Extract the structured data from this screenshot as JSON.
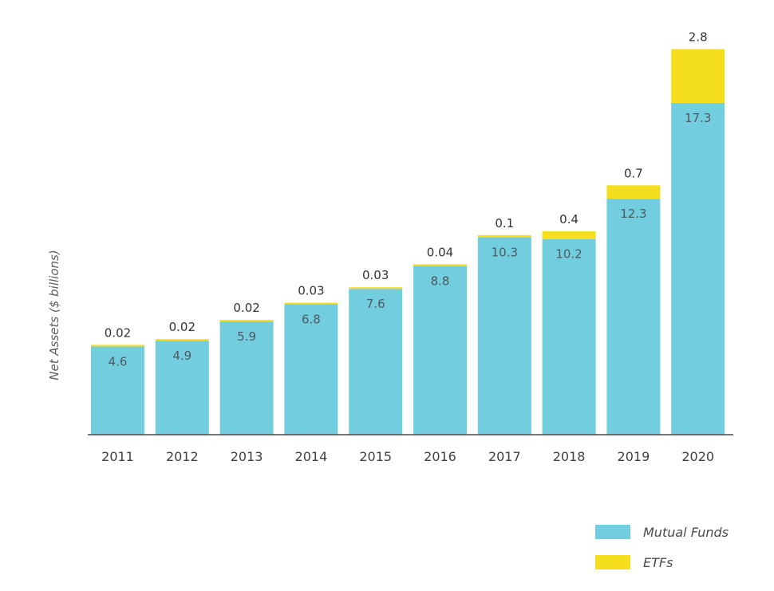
{
  "chart_data": {
    "type": "bar",
    "stacked": true,
    "title": "",
    "xlabel": "",
    "ylabel": "Net Assets ($ billions)",
    "categories": [
      "2011",
      "2012",
      "2013",
      "2014",
      "2015",
      "2016",
      "2017",
      "2018",
      "2019",
      "2020"
    ],
    "series": [
      {
        "name": "Mutual Funds",
        "color": "#72cddf",
        "values": [
          4.6,
          4.9,
          5.9,
          6.8,
          7.6,
          8.8,
          10.3,
          10.2,
          12.3,
          17.3
        ],
        "labels": [
          "4.6",
          "4.9",
          "5.9",
          "6.8",
          "7.6",
          "8.8",
          "10.3",
          "10.2",
          "12.3",
          "17.3"
        ]
      },
      {
        "name": "ETFs",
        "color": "#f5de1d",
        "values": [
          0.02,
          0.02,
          0.02,
          0.03,
          0.03,
          0.04,
          0.1,
          0.4,
          0.7,
          2.8
        ],
        "labels": [
          "0.02",
          "0.02",
          "0.02",
          "0.03",
          "0.03",
          "0.04",
          "0.1",
          "0.4",
          "0.7",
          "2.8"
        ]
      }
    ],
    "ylim": [
      0,
      20.1
    ],
    "grid": false,
    "legend": "bottom-right"
  }
}
